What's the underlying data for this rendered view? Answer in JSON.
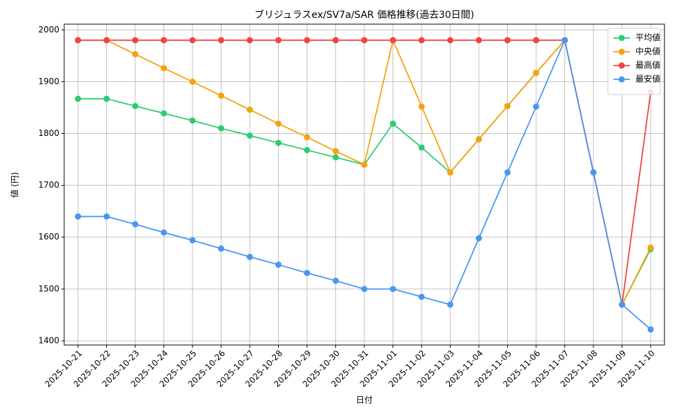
{
  "chart_data": {
    "type": "line",
    "title": "ブリジュラスex/SV7a/SAR 価格推移(過去30日間)",
    "x_label": "日付",
    "y_label": "値 (円)",
    "categories": [
      "2025-10-21",
      "2025-10-22",
      "2025-10-23",
      "2025-10-24",
      "2025-10-25",
      "2025-10-26",
      "2025-10-27",
      "2025-10-28",
      "2025-10-29",
      "2025-10-30",
      "2025-10-31",
      "2025-11-01",
      "2025-11-02",
      "2025-11-03",
      "2025-11-04",
      "2025-11-05",
      "2025-11-06",
      "2025-11-07",
      "2025-11-08",
      "2025-11-09",
      "2025-11-10"
    ],
    "series": [
      {
        "name": "平均値",
        "color": "#2ecc71",
        "values": [
          1867,
          1867,
          1853,
          1839,
          1825,
          1810,
          1796,
          1782,
          1768,
          1754,
          1740,
          1819,
          1773,
          1725,
          1789,
          1853,
          1917,
          1980,
          1725,
          1470,
          1577
        ]
      },
      {
        "name": "中央値",
        "color": "#f5a30f",
        "values": [
          1980,
          1980,
          1953,
          1926,
          1900,
          1873,
          1846,
          1819,
          1793,
          1766,
          1740,
          1980,
          1852,
          1725,
          1789,
          1853,
          1917,
          1980,
          1725,
          1470,
          1580
        ]
      },
      {
        "name": "最高値",
        "color": "#ef4444",
        "values": [
          1980,
          1980,
          1980,
          1980,
          1980,
          1980,
          1980,
          1980,
          1980,
          1980,
          1980,
          1980,
          1980,
          1980,
          1980,
          1980,
          1980,
          1980,
          1725,
          1470,
          1880
        ]
      },
      {
        "name": "最安値",
        "color": "#4a97f2",
        "values": [
          1640,
          1640,
          1625,
          1609,
          1594,
          1578,
          1562,
          1547,
          1531,
          1516,
          1500,
          1500,
          1485,
          1470,
          1598,
          1725,
          1852,
          1980,
          1725,
          1470,
          1422
        ]
      }
    ],
    "ylim": [
      1392,
      2011
    ],
    "yticks": [
      1400,
      1500,
      1600,
      1700,
      1800,
      1900,
      2000
    ],
    "grid": true,
    "legend": "upper right"
  }
}
